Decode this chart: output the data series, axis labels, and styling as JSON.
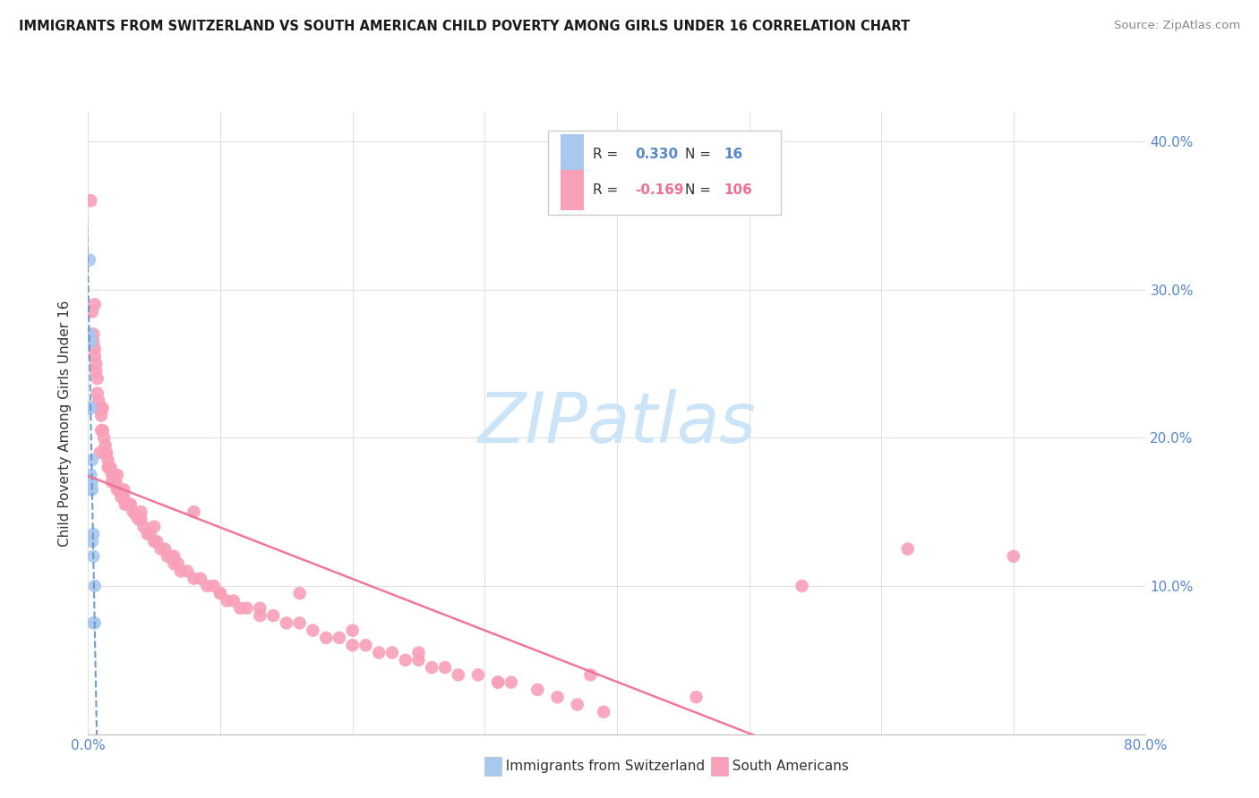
{
  "title": "IMMIGRANTS FROM SWITZERLAND VS SOUTH AMERICAN CHILD POVERTY AMONG GIRLS UNDER 16 CORRELATION CHART",
  "source": "Source: ZipAtlas.com",
  "ylabel": "Child Poverty Among Girls Under 16",
  "r_swiss": 0.33,
  "n_swiss": 16,
  "r_south": -0.169,
  "n_south": 106,
  "color_swiss": "#a8c8f0",
  "color_south": "#f8a0b8",
  "color_swiss_line": "#6699cc",
  "color_south_line": "#f07090",
  "watermark_color": "#cce4f7",
  "xlim": [
    0.0,
    0.8
  ],
  "ylim": [
    0.0,
    0.42
  ],
  "yticks": [
    0.1,
    0.2,
    0.3,
    0.4
  ],
  "ytick_labels": [
    "10.0%",
    "20.0%",
    "30.0%",
    "40.0%"
  ],
  "xtick_left_label": "0.0%",
  "xtick_right_label": "80.0%",
  "swiss_x": [
    0.001,
    0.001,
    0.001,
    0.002,
    0.002,
    0.002,
    0.002,
    0.003,
    0.003,
    0.003,
    0.003,
    0.004,
    0.004,
    0.004,
    0.005,
    0.005
  ],
  "swiss_y": [
    0.32,
    0.27,
    0.22,
    0.265,
    0.22,
    0.175,
    0.165,
    0.185,
    0.17,
    0.165,
    0.13,
    0.135,
    0.12,
    0.075,
    0.1,
    0.075
  ],
  "sa_x": [
    0.002,
    0.003,
    0.004,
    0.004,
    0.005,
    0.005,
    0.006,
    0.007,
    0.007,
    0.008,
    0.009,
    0.01,
    0.01,
    0.011,
    0.012,
    0.013,
    0.014,
    0.015,
    0.016,
    0.017,
    0.018,
    0.019,
    0.02,
    0.021,
    0.022,
    0.023,
    0.025,
    0.027,
    0.028,
    0.03,
    0.032,
    0.034,
    0.036,
    0.038,
    0.04,
    0.042,
    0.045,
    0.047,
    0.05,
    0.052,
    0.055,
    0.058,
    0.06,
    0.063,
    0.065,
    0.068,
    0.07,
    0.075,
    0.08,
    0.085,
    0.09,
    0.095,
    0.1,
    0.105,
    0.11,
    0.115,
    0.12,
    0.13,
    0.14,
    0.15,
    0.16,
    0.17,
    0.18,
    0.19,
    0.2,
    0.21,
    0.22,
    0.23,
    0.24,
    0.25,
    0.26,
    0.27,
    0.28,
    0.295,
    0.31,
    0.32,
    0.34,
    0.355,
    0.37,
    0.39,
    0.005,
    0.006,
    0.008,
    0.009,
    0.011,
    0.013,
    0.015,
    0.018,
    0.022,
    0.027,
    0.032,
    0.04,
    0.05,
    0.065,
    0.08,
    0.1,
    0.13,
    0.16,
    0.2,
    0.25,
    0.31,
    0.38,
    0.46,
    0.54,
    0.62,
    0.7
  ],
  "sa_y": [
    0.36,
    0.285,
    0.27,
    0.265,
    0.26,
    0.255,
    0.245,
    0.24,
    0.23,
    0.225,
    0.22,
    0.215,
    0.205,
    0.205,
    0.2,
    0.195,
    0.19,
    0.185,
    0.18,
    0.18,
    0.175,
    0.175,
    0.17,
    0.17,
    0.165,
    0.165,
    0.16,
    0.16,
    0.155,
    0.155,
    0.155,
    0.15,
    0.148,
    0.145,
    0.145,
    0.14,
    0.135,
    0.135,
    0.13,
    0.13,
    0.125,
    0.125,
    0.12,
    0.12,
    0.115,
    0.115,
    0.11,
    0.11,
    0.105,
    0.105,
    0.1,
    0.1,
    0.095,
    0.09,
    0.09,
    0.085,
    0.085,
    0.08,
    0.08,
    0.075,
    0.075,
    0.07,
    0.065,
    0.065,
    0.06,
    0.06,
    0.055,
    0.055,
    0.05,
    0.05,
    0.045,
    0.045,
    0.04,
    0.04,
    0.035,
    0.035,
    0.03,
    0.025,
    0.02,
    0.015,
    0.29,
    0.25,
    0.22,
    0.19,
    0.22,
    0.19,
    0.18,
    0.17,
    0.175,
    0.165,
    0.155,
    0.15,
    0.14,
    0.12,
    0.15,
    0.095,
    0.085,
    0.095,
    0.07,
    0.055,
    0.035,
    0.04,
    0.025,
    0.1,
    0.125,
    0.12
  ]
}
